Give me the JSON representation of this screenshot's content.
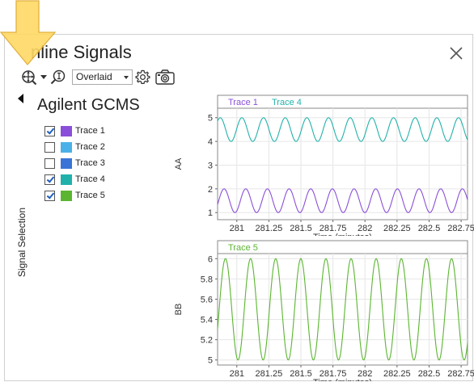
{
  "window": {
    "title": "Online Signals",
    "title_visible": "nline Signals"
  },
  "toolbar": {
    "view_mode": "Overlaid",
    "view_options": [
      "Overlaid"
    ]
  },
  "sidebar": {
    "collapsed_label": "Signal Selection"
  },
  "instrument": {
    "name": "Agilent GCMS"
  },
  "traces": [
    {
      "label": "Trace 1",
      "checked": true,
      "color": "#8a4fd8"
    },
    {
      "label": "Trace 2",
      "checked": false,
      "color": "#4ab1e8"
    },
    {
      "label": "Trace 3",
      "checked": false,
      "color": "#3b74d6"
    },
    {
      "label": "Trace 4",
      "checked": true,
      "color": "#20b2aa"
    },
    {
      "label": "Trace 5",
      "checked": true,
      "color": "#5bb531"
    }
  ],
  "icons": {
    "zoom": "zoom-crosshair-icon",
    "zoom_dropdown": "chevron-down-icon",
    "magnify": "magnify-fit-icon",
    "settings": "gear-icon",
    "snapshot": "camera-icon",
    "close": "close-icon",
    "collapse": "collapse-left-icon"
  },
  "highlight_color": "#ffd966",
  "chart_data": [
    {
      "type": "line",
      "legend": [
        "Trace 1",
        "Trace 4"
      ],
      "ylabel": "AA",
      "xlabel": "Time (minutes)",
      "xlim": [
        280.85,
        282.8
      ],
      "ylim": [
        0.7,
        5.4
      ],
      "xticks": [
        281,
        281.25,
        281.5,
        281.75,
        282,
        282.25,
        282.5,
        282.75
      ],
      "xtick_labels": [
        "281",
        "281.25",
        "281.5",
        "281.75",
        "282",
        "282.25",
        "282.5",
        "282.75"
      ],
      "yticks": [
        1,
        2,
        3,
        4,
        5
      ],
      "ytick_labels": [
        "1",
        "2",
        "3",
        "4",
        "5"
      ],
      "grid": true,
      "series": [
        {
          "name": "Trace 1",
          "color": "#8a4fd8",
          "form": "sine",
          "center": 1.5,
          "amplitude": 0.5,
          "period": 0.169,
          "phase": -0.32,
          "x_start": 280.85,
          "x_end": 282.8
        },
        {
          "name": "Trace 4",
          "color": "#20b2aa",
          "form": "sine",
          "center": 4.5,
          "amplitude": 0.5,
          "period": 0.169,
          "phase": 0.8,
          "x_start": 280.85,
          "x_end": 282.8
        }
      ]
    },
    {
      "type": "line",
      "legend": [
        "Trace 5"
      ],
      "ylabel": "BB",
      "xlabel": "Time (minutes)",
      "xlim": [
        280.85,
        282.8
      ],
      "ylim": [
        4.95,
        6.05
      ],
      "xticks": [
        281,
        281.25,
        281.5,
        281.75,
        282,
        282.25,
        282.5,
        282.75
      ],
      "xtick_labels": [
        "281",
        "281.25",
        "281.5",
        "281.75",
        "282",
        "282.25",
        "282.5",
        "282.75"
      ],
      "yticks": [
        5,
        5.2,
        5.4,
        5.6,
        5.8,
        6
      ],
      "ytick_labels": [
        "5",
        "5.2",
        "5.4",
        "5.6",
        "5.8",
        "6"
      ],
      "grid": true,
      "series": [
        {
          "name": "Trace 5",
          "color": "#5bb531",
          "form": "sine",
          "center": 5.5,
          "amplitude": 0.5,
          "period": 0.196,
          "phase": -0.4,
          "x_start": 280.85,
          "x_end": 282.8
        }
      ]
    }
  ]
}
